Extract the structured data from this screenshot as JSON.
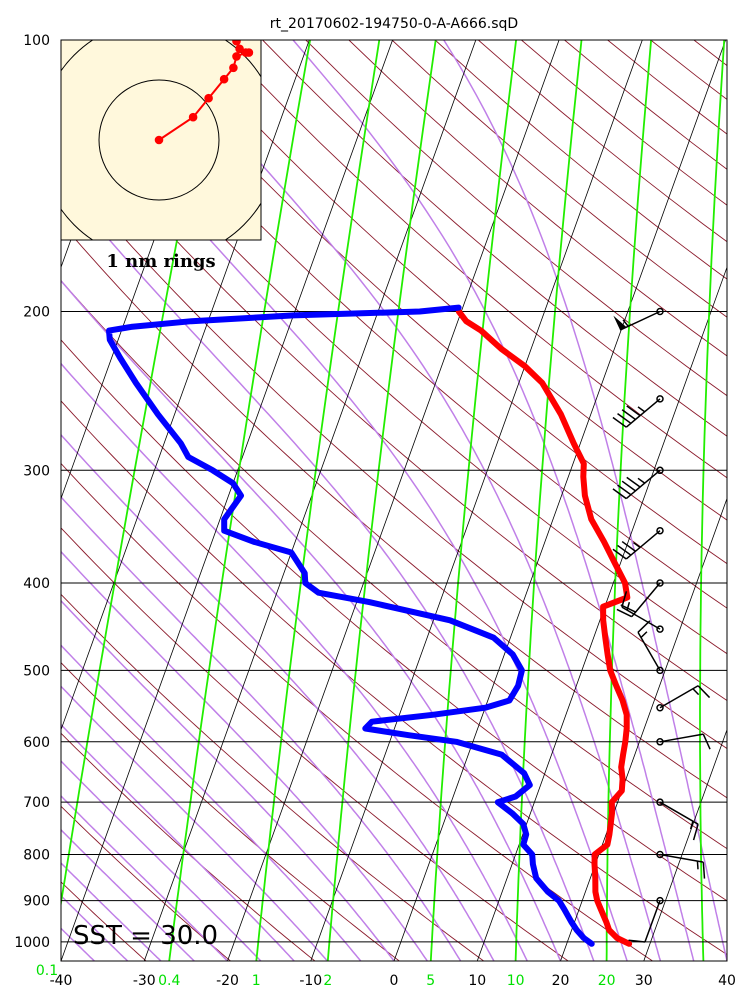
{
  "chart_data": {
    "type": "line",
    "title": "rt_20170602-194750-0-A-A666.sqD",
    "annotation": "SST = 30.0",
    "hodograph_label": "1 nm rings",
    "pressure_ticks": [
      100,
      200,
      300,
      400,
      500,
      600,
      700,
      800,
      900,
      1000
    ],
    "temperature_ticks": [
      -40,
      -30,
      -20,
      -10,
      0,
      10,
      20,
      30,
      40
    ],
    "mixing_ratio_labels": [
      "0.1",
      "0.4",
      "1",
      "2",
      "5",
      "10",
      "20"
    ],
    "xlim": [
      -40,
      40
    ],
    "ylim": [
      1000,
      100
    ],
    "yscale": "log",
    "series": [
      {
        "color": "#ff0000",
        "profile": "temperature",
        "points": [
          [
            1005,
            27.5
          ],
          [
            990,
            25.8
          ],
          [
            970,
            24.5
          ],
          [
            950,
            23.8
          ],
          [
            920,
            22.6
          ],
          [
            900,
            21.8
          ],
          [
            880,
            21.2
          ],
          [
            850,
            20.6
          ],
          [
            820,
            19.9
          ],
          [
            800,
            19.5
          ],
          [
            780,
            20.6
          ],
          [
            760,
            20.4
          ],
          [
            740,
            20.1
          ],
          [
            720,
            19.8
          ],
          [
            700,
            19.3
          ],
          [
            680,
            20.0
          ],
          [
            660,
            19.6
          ],
          [
            640,
            18.9
          ],
          [
            620,
            18.6
          ],
          [
            600,
            18.3
          ],
          [
            580,
            17.9
          ],
          [
            560,
            17.3
          ],
          [
            540,
            16.2
          ],
          [
            520,
            14.8
          ],
          [
            500,
            13.4
          ],
          [
            480,
            12.4
          ],
          [
            460,
            11.4
          ],
          [
            440,
            10.4
          ],
          [
            425,
            9.8
          ],
          [
            415,
            12.3
          ],
          [
            400,
            11.4
          ],
          [
            380,
            9.3
          ],
          [
            360,
            7.1
          ],
          [
            340,
            4.6
          ],
          [
            320,
            2.8
          ],
          [
            305,
            1.8
          ],
          [
            295,
            1.3
          ],
          [
            280,
            -0.8
          ],
          [
            260,
            -3.6
          ],
          [
            240,
            -7.2
          ],
          [
            230,
            -10.0
          ],
          [
            220,
            -13.6
          ],
          [
            210,
            -16.8
          ],
          [
            205,
            -19.0
          ],
          [
            200,
            -20.3
          ]
        ]
      },
      {
        "color": "#0000ff",
        "profile": "dewpoint",
        "points": [
          [
            1005,
            23.0
          ],
          [
            990,
            21.8
          ],
          [
            970,
            20.6
          ],
          [
            950,
            19.6
          ],
          [
            920,
            18.2
          ],
          [
            900,
            17.2
          ],
          [
            880,
            15.5
          ],
          [
            850,
            13.5
          ],
          [
            820,
            12.5
          ],
          [
            800,
            12.0
          ],
          [
            780,
            10.5
          ],
          [
            760,
            10.4
          ],
          [
            740,
            9.6
          ],
          [
            720,
            7.8
          ],
          [
            700,
            5.6
          ],
          [
            690,
            7.5
          ],
          [
            670,
            8.7
          ],
          [
            650,
            7.5
          ],
          [
            620,
            4.0
          ],
          [
            600,
            -2.0
          ],
          [
            590,
            -8.0
          ],
          [
            580,
            -13.5
          ],
          [
            570,
            -13.0
          ],
          [
            560,
            -6.0
          ],
          [
            550,
            0.0
          ],
          [
            540,
            2.6
          ],
          [
            520,
            3.0
          ],
          [
            500,
            2.8
          ],
          [
            480,
            1.0
          ],
          [
            460,
            -2.0
          ],
          [
            440,
            -8.0
          ],
          [
            420,
            -18.5
          ],
          [
            410,
            -25.0
          ],
          [
            400,
            -27.0
          ],
          [
            390,
            -27.5
          ],
          [
            370,
            -30.0
          ],
          [
            360,
            -35.0
          ],
          [
            350,
            -39.0
          ],
          [
            340,
            -39.5
          ],
          [
            320,
            -38.5
          ],
          [
            310,
            -40.0
          ],
          [
            300,
            -43.0
          ],
          [
            290,
            -46.5
          ],
          [
            280,
            -48.0
          ],
          [
            260,
            -52.0
          ],
          [
            240,
            -56.0
          ],
          [
            225,
            -59.0
          ],
          [
            215,
            -61.0
          ],
          [
            210,
            -61.5
          ],
          [
            208,
            -59.0
          ],
          [
            205,
            -52.0
          ],
          [
            202,
            -40.0
          ],
          [
            200,
            -25.0
          ],
          [
            198,
            -20.5
          ]
        ]
      }
    ],
    "wind_barbs": [
      {
        "pressure": 200,
        "direction": 245,
        "speed": 55
      },
      {
        "pressure": 250,
        "direction": 230,
        "speed": 45
      },
      {
        "pressure": 300,
        "direction": 230,
        "speed": 45
      },
      {
        "pressure": 350,
        "direction": 230,
        "speed": 35
      },
      {
        "pressure": 400,
        "direction": 220,
        "speed": 20
      },
      {
        "pressure": 450,
        "direction": 300,
        "speed": 15
      },
      {
        "pressure": 500,
        "direction": 330,
        "speed": 15
      },
      {
        "pressure": 550,
        "direction": 60,
        "speed": 15
      },
      {
        "pressure": 600,
        "direction": 80,
        "speed": 10
      },
      {
        "pressure": 700,
        "direction": 120,
        "speed": 15
      },
      {
        "pressure": 800,
        "direction": 100,
        "speed": 15
      },
      {
        "pressure": 900,
        "direction": 200,
        "speed": 10
      }
    ],
    "hodograph": {
      "background": "#fff8dc",
      "ring_radii_nm": [
        1,
        2
      ],
      "points": [
        [
          0,
          0
        ],
        [
          1.1,
          0.6
        ],
        [
          1.6,
          1.1
        ],
        [
          2.1,
          1.6
        ],
        [
          2.4,
          1.9
        ],
        [
          2.5,
          2.2
        ],
        [
          2.8,
          2.3
        ],
        [
          2.9,
          2.3
        ],
        [
          2.6,
          2.4
        ],
        [
          2.5,
          2.6
        ],
        [
          2.7,
          2.8
        ]
      ]
    }
  }
}
